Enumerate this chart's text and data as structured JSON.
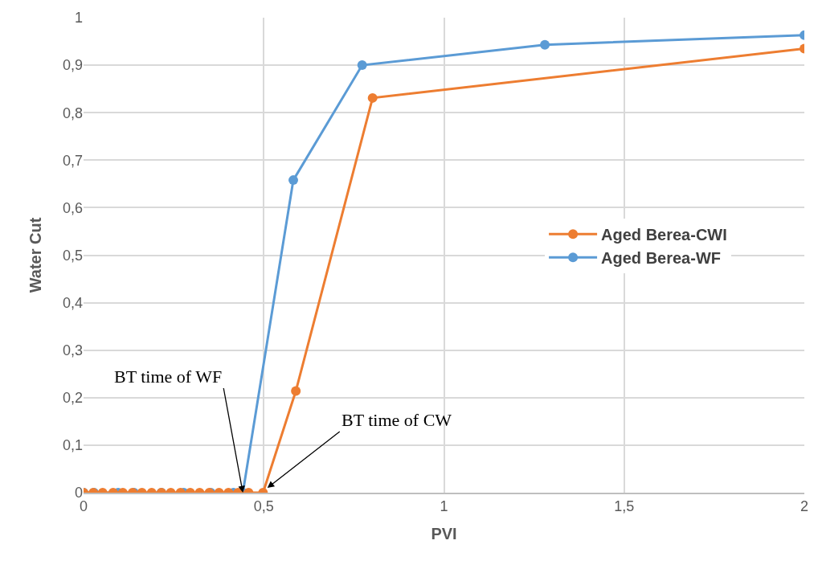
{
  "chart_data": {
    "type": "line",
    "xlabel": "PVI",
    "ylabel": "Water Cut",
    "marker": "circle",
    "line_style": "solid",
    "grid": true,
    "legend": "right",
    "xlim": [
      0,
      2
    ],
    "xticks": [
      0,
      {
        "value": 0.5,
        "label": "0,5"
      },
      1,
      {
        "value": 1.5,
        "label": "1,5"
      },
      2
    ],
    "ylim": [
      0,
      1
    ],
    "yticks": [
      0,
      {
        "value": 0.1,
        "label": "0,1"
      },
      {
        "value": 0.2,
        "label": "0,2"
      },
      {
        "value": 0.3,
        "label": "0,3"
      },
      {
        "value": 0.4,
        "label": "0,4"
      },
      {
        "value": 0.5,
        "label": "0,5"
      },
      {
        "value": 0.6,
        "label": "0,6"
      },
      {
        "value": 0.7,
        "label": "0,7"
      },
      {
        "value": 0.8,
        "label": "0,8"
      },
      {
        "value": 0.9,
        "label": "0,9"
      },
      1
    ],
    "series": [
      {
        "name": "Aged Berea-CWI",
        "color": "#ed7d31",
        "x": [
          0,
          0.027,
          0.053,
          0.082,
          0.109,
          0.136,
          0.162,
          0.189,
          0.216,
          0.242,
          0.269,
          0.296,
          0.322,
          0.349,
          0.376,
          0.402,
          0.429,
          0.458,
          0.498,
          0.589,
          0.802,
          2
        ],
        "values": [
          0,
          0,
          0,
          0,
          0,
          0,
          0,
          0,
          0,
          0,
          0,
          0,
          0,
          0,
          0,
          0,
          0,
          0,
          0,
          0.214,
          0.831,
          0.935
        ]
      },
      {
        "name": "Aged Berea-WF",
        "color": "#5b9bd5",
        "x": [
          0,
          0.029,
          0.096,
          0.14,
          0.216,
          0.278,
          0.353,
          0.416,
          0.442,
          0.582,
          0.773,
          1.28,
          2
        ],
        "values": [
          0,
          0,
          0,
          0,
          0,
          0,
          0,
          0,
          0,
          0.658,
          0.9,
          0.943,
          0.963
        ]
      }
    ],
    "annotations": [
      {
        "text": "BT time of WF",
        "x": 0.442,
        "y": 0
      },
      {
        "text": "BT time of CW",
        "x": 0.51,
        "y": 0.01
      }
    ]
  }
}
